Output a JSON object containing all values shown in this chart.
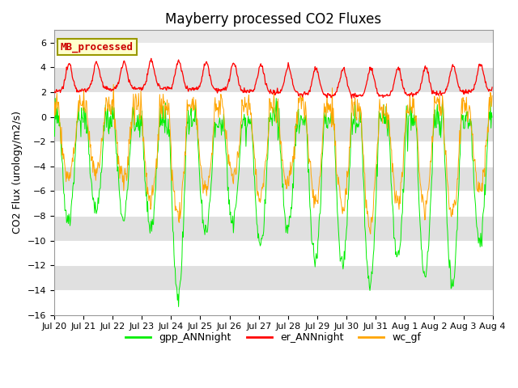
{
  "title": "Mayberry processed CO2 Fluxes",
  "ylabel": "CO2 Flux (urology/m2/s)",
  "ylim": [
    -16,
    7
  ],
  "yticks": [
    -16,
    -14,
    -12,
    -10,
    -8,
    -6,
    -4,
    -2,
    0,
    2,
    4,
    6
  ],
  "xtick_labels": [
    "Jul 20",
    "Jul 21",
    "Jul 22",
    "Jul 23",
    "Jul 24",
    "Jul 25",
    "Jul 26",
    "Jul 27",
    "Jul 28",
    "Jul 29",
    "Jul 30",
    "Jul 31",
    "Aug 1",
    "Aug 2",
    "Aug 3",
    "Aug 4"
  ],
  "annotation_text": "MB_processed",
  "annotation_box_facecolor": "#ffffcc",
  "annotation_box_edgecolor": "#999900",
  "annotation_text_color": "#cc0000",
  "background_color": "#ffffff",
  "plot_bg_color": "#e8e8e8",
  "grid_color": "#ffffff",
  "stripe_colors": [
    "#ffffff",
    "#e0e0e0"
  ],
  "colors": {
    "gpp_ANNnight": "#00ee00",
    "er_ANNnight": "#ff0000",
    "wc_gf": "#ffa500"
  },
  "legend_labels": [
    "gpp_ANNnight",
    "er_ANNnight",
    "wc_gf"
  ],
  "n_points_per_day": 48,
  "n_days": 16,
  "seed": 12345
}
